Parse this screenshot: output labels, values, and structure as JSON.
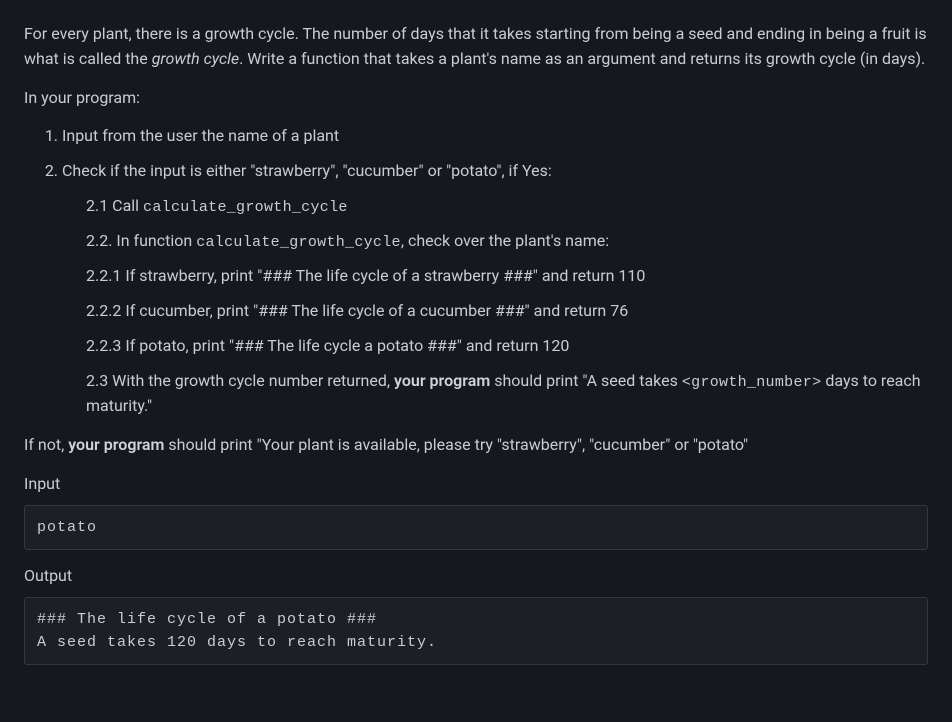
{
  "intro": {
    "p1a": "For every plant, there is a growth cycle. The number of days that it takes starting from being a seed and ending in being a fruit is what is called the ",
    "p1em": "growth cycle",
    "p1b": ". Write a function that takes a plant's name as an argument and returns its growth cycle (in days).",
    "p2": "In your program:"
  },
  "steps": {
    "s1": "Input from the user the name of a plant",
    "s2": "Check if the input is either \"strawberry\", \"cucumber\" or \"potato\", if Yes:",
    "s2_1a": "2.1 Call ",
    "s2_1code": "calculate_growth_cycle",
    "s2_2a": "2.2. In function ",
    "s2_2code": "calculate_growth_cycle",
    "s2_2b": ", check over the plant's name:",
    "s2_2_1": "2.2.1 If strawberry, print \"### The life cycle of a strawberry ###\" and return 110",
    "s2_2_2": "2.2.2 If cucumber, print \"### The life cycle of a cucumber ###\" and return 76",
    "s2_2_3": "2.2.3 If potato, print \"### The life cycle a potato ###\" and return 120",
    "s2_3a": "2.3 With the growth cycle number returned, ",
    "s2_3strong": "your program",
    "s2_3b": " should print \"A seed takes ",
    "s2_3code": "<growth_number>",
    "s2_3c": " days to reach maturity.\""
  },
  "after": {
    "p1a": "If not, ",
    "p1strong": "your program",
    "p1b": " should print \"Your plant is available, please try \"strawberry\", \"cucumber\" or \"potato\""
  },
  "io": {
    "input_label": "Input",
    "input_value": "potato",
    "output_label": "Output",
    "output_value": "### The life cycle of a potato ###\nA seed takes 120 days to reach maturity."
  }
}
